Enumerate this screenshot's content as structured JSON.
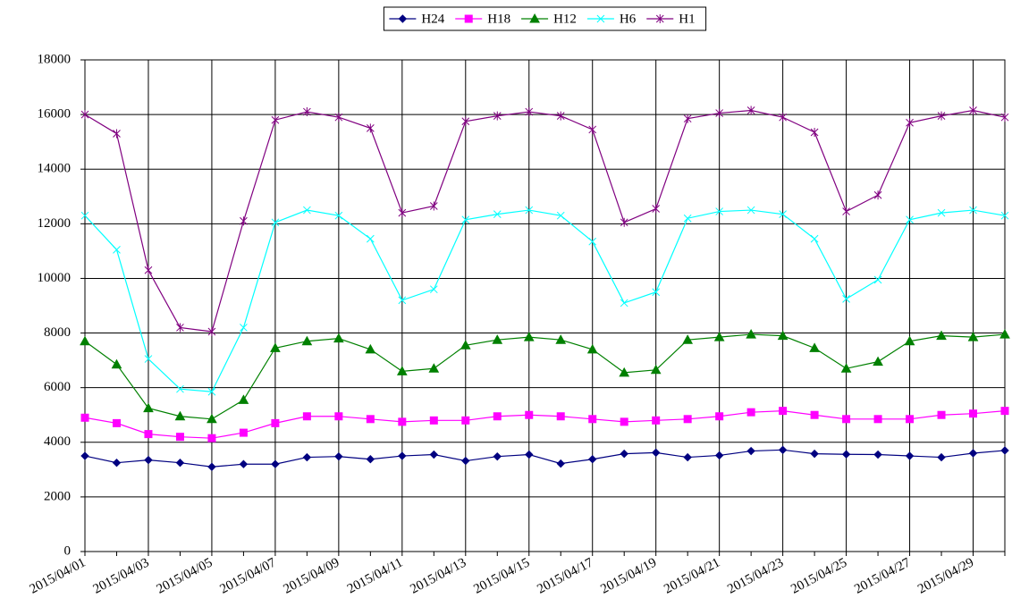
{
  "chart_data": {
    "type": "line",
    "categories": [
      "2015/04/01",
      null,
      "2015/04/03",
      null,
      "2015/04/05",
      null,
      "2015/04/07",
      null,
      "2015/04/09",
      null,
      "2015/04/11",
      null,
      "2015/04/13",
      null,
      "2015/04/15",
      null,
      "2015/04/17",
      null,
      "2015/04/19",
      null,
      "2015/04/21",
      null,
      "2015/04/23",
      null,
      "2015/04/25",
      null,
      "2015/04/27",
      null,
      "2015/04/29",
      null
    ],
    "series": [
      {
        "name": "H24",
        "color": "#000080",
        "marker": "diamond",
        "values": [
          3500,
          3250,
          3350,
          3250,
          3100,
          3200,
          3200,
          3450,
          3480,
          3380,
          3500,
          3550,
          3320,
          3480,
          3550,
          3220,
          3380,
          3580,
          3620,
          3450,
          3520,
          3680,
          3720,
          3580,
          3560,
          3550,
          3500,
          3450,
          3600,
          3700
        ]
      },
      {
        "name": "H18",
        "color": "#ff00ff",
        "marker": "square",
        "values": [
          4900,
          4700,
          4300,
          4200,
          4150,
          4350,
          4700,
          4950,
          4950,
          4850,
          4750,
          4800,
          4800,
          4950,
          5000,
          4950,
          4850,
          4750,
          4800,
          4850,
          4950,
          5100,
          5150,
          5000,
          4850,
          4850,
          4850,
          5000,
          5050,
          5150
        ]
      },
      {
        "name": "H12",
        "color": "#008000",
        "marker": "triangle",
        "values": [
          7700,
          6850,
          5250,
          4950,
          4850,
          5550,
          7450,
          7700,
          7800,
          7400,
          6600,
          6700,
          7550,
          7750,
          7850,
          7750,
          7400,
          6550,
          6650,
          7750,
          7850,
          7950,
          7900,
          7450,
          6700,
          6950,
          7700,
          7900,
          7850,
          7950
        ]
      },
      {
        "name": "H6",
        "color": "#00ffff",
        "marker": "x",
        "values": [
          12300,
          11050,
          7050,
          5950,
          5850,
          8200,
          12050,
          12500,
          12300,
          11450,
          9200,
          9600,
          12150,
          12350,
          12500,
          12300,
          11350,
          9100,
          9500,
          12200,
          12450,
          12500,
          12350,
          11450,
          9250,
          9950,
          12150,
          12400,
          12500,
          12300
        ]
      },
      {
        "name": "H1",
        "color": "#800080",
        "marker": "star",
        "values": [
          16000,
          15300,
          10300,
          8200,
          8050,
          12100,
          15800,
          16100,
          15900,
          15500,
          12400,
          12650,
          15750,
          15950,
          16100,
          15950,
          15450,
          12050,
          12550,
          15850,
          16050,
          16150,
          15900,
          15350,
          12450,
          13050,
          15700,
          15950,
          16150,
          15900
        ]
      }
    ],
    "ylim": [
      0,
      18000
    ],
    "yticks": [
      0,
      2000,
      4000,
      6000,
      8000,
      10000,
      12000,
      14000,
      16000,
      18000
    ],
    "grid": true,
    "legend": "top"
  }
}
